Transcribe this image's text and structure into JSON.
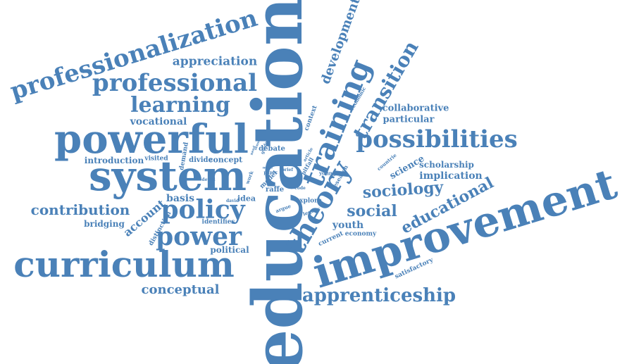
{
  "colors": {
    "word": "#4a81b8",
    "background": "#ffffff"
  },
  "words": [
    {
      "text": "education"
    },
    {
      "text": "improvement"
    },
    {
      "text": "system"
    },
    {
      "text": "powerful"
    },
    {
      "text": "curriculum"
    },
    {
      "text": "professionalization"
    },
    {
      "text": "professional"
    },
    {
      "text": "possibilities"
    },
    {
      "text": "training"
    },
    {
      "text": "theory"
    },
    {
      "text": "transition"
    },
    {
      "text": "learning"
    },
    {
      "text": "policy"
    },
    {
      "text": "power"
    },
    {
      "text": "apprenticeship"
    },
    {
      "text": "contribution"
    },
    {
      "text": "social"
    },
    {
      "text": "sociology"
    },
    {
      "text": "educational"
    },
    {
      "text": "development"
    },
    {
      "text": "appreciation"
    },
    {
      "text": "conceptual"
    },
    {
      "text": "vocational"
    },
    {
      "text": "account"
    },
    {
      "text": "collaborative"
    },
    {
      "text": "particular"
    },
    {
      "text": "implication"
    },
    {
      "text": "scholarship"
    },
    {
      "text": "science"
    },
    {
      "text": "youth"
    },
    {
      "text": "basis"
    },
    {
      "text": "introduction"
    },
    {
      "text": "bridging"
    },
    {
      "text": "political"
    },
    {
      "text": "identifies"
    },
    {
      "text": "distinction"
    },
    {
      "text": "concept"
    },
    {
      "text": "divide"
    },
    {
      "text": "demand"
    },
    {
      "text": "debate"
    },
    {
      "text": "idea"
    },
    {
      "text": "model"
    },
    {
      "text": "raffe"
    },
    {
      "text": "visited"
    },
    {
      "text": "explore"
    },
    {
      "text": "current"
    },
    {
      "text": "economy"
    },
    {
      "text": "satisfactory"
    },
    {
      "text": "context"
    },
    {
      "text": "economic"
    },
    {
      "text": "pitfall"
    },
    {
      "text": "research"
    },
    {
      "text": "young"
    },
    {
      "text": "countrie"
    },
    {
      "text": "legacy"
    },
    {
      "text": "argue"
    },
    {
      "text": "work"
    },
    {
      "text": "david"
    },
    {
      "text": "detail"
    },
    {
      "text": "paper"
    },
    {
      "text": "brief"
    },
    {
      "text": "article"
    },
    {
      "text": "code"
    },
    {
      "text": "year"
    },
    {
      "text": "more"
    },
    {
      "text": "guide"
    },
    {
      "text": "sense"
    },
    {
      "text": "need"
    }
  ]
}
